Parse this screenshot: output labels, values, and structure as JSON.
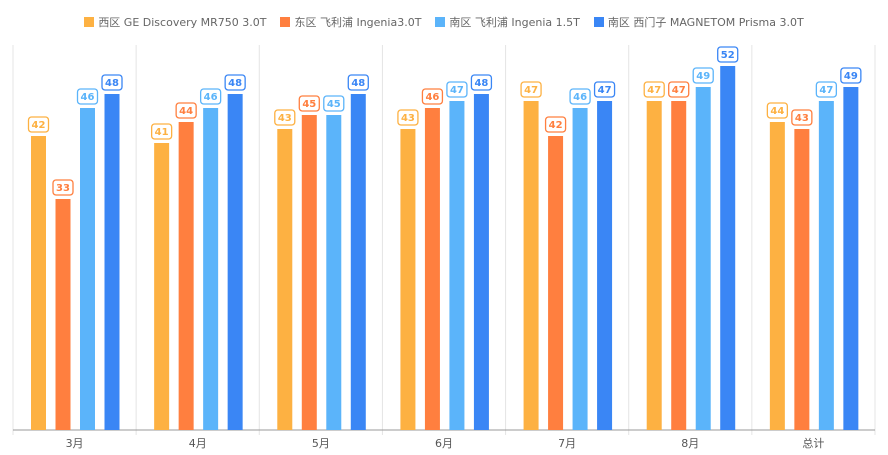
{
  "chart_data": {
    "type": "bar",
    "categories": [
      "3月",
      "4月",
      "5月",
      "6月",
      "7月",
      "8月",
      "总计"
    ],
    "series": [
      {
        "name": "西区 GE Discovery MR750 3.0T",
        "color": "#FDB142",
        "values": [
          42,
          41,
          43,
          43,
          47,
          47,
          44
        ]
      },
      {
        "name": "东区 飞利浦 Ingenia3.0T",
        "color": "#FF7F3F",
        "values": [
          33,
          44,
          45,
          46,
          42,
          47,
          43
        ]
      },
      {
        "name": "南区 飞利浦 Ingenia 1.5T",
        "color": "#5BB4FA",
        "values": [
          46,
          46,
          45,
          47,
          46,
          49,
          47
        ]
      },
      {
        "name": "南区 西门子 MAGNETOM Prisma 3.0T",
        "color": "#3A86F5",
        "values": [
          48,
          48,
          48,
          48,
          47,
          52,
          49
        ]
      }
    ],
    "ylim": [
      0,
      55
    ],
    "grid": false,
    "legend": "top-center"
  }
}
